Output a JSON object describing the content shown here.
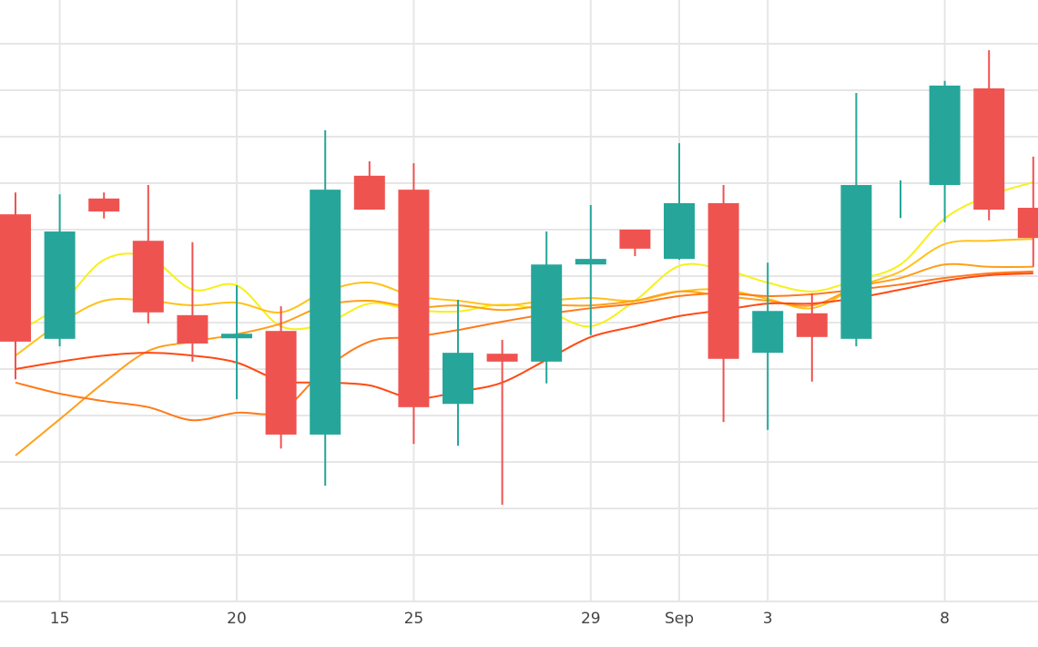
{
  "chart_data": {
    "type": "candlestick",
    "title": "",
    "xlabel": "",
    "ylabel": "",
    "ylim": [
      0,
      12
    ],
    "y_grid_step": 1,
    "grid": true,
    "x_tick_labels": [
      {
        "index": 1,
        "label": "15"
      },
      {
        "index": 5,
        "label": "20"
      },
      {
        "index": 9,
        "label": "25"
      },
      {
        "index": 13,
        "label": "29"
      },
      {
        "index": 15,
        "label": "Sep"
      },
      {
        "index": 17,
        "label": "3"
      },
      {
        "index": 21,
        "label": "8"
      }
    ],
    "colors": {
      "up": "#26a69a",
      "down": "#ef5350",
      "grid": "#e6e6e6"
    },
    "candles": [
      {
        "o": 8.33,
        "h": 8.8,
        "l": 4.78,
        "c": 5.59
      },
      {
        "o": 5.65,
        "h": 8.76,
        "l": 5.49,
        "c": 7.96
      },
      {
        "o": 8.67,
        "h": 8.8,
        "l": 8.24,
        "c": 8.39
      },
      {
        "o": 7.76,
        "h": 8.96,
        "l": 5.98,
        "c": 6.22
      },
      {
        "o": 6.16,
        "h": 7.73,
        "l": 5.16,
        "c": 5.55
      },
      {
        "o": 5.69,
        "h": 6.8,
        "l": 4.35,
        "c": 5.76
      },
      {
        "o": 5.82,
        "h": 6.35,
        "l": 3.29,
        "c": 3.59
      },
      {
        "o": 3.59,
        "h": 10.14,
        "l": 2.49,
        "c": 8.86
      },
      {
        "o": 9.16,
        "h": 9.47,
        "l": 8.43,
        "c": 8.43
      },
      {
        "o": 8.86,
        "h": 9.43,
        "l": 3.39,
        "c": 4.18
      },
      {
        "o": 4.25,
        "h": 6.49,
        "l": 3.35,
        "c": 5.35
      },
      {
        "o": 5.33,
        "h": 5.63,
        "l": 2.08,
        "c": 5.16
      },
      {
        "o": 5.16,
        "h": 7.96,
        "l": 4.69,
        "c": 7.25
      },
      {
        "o": 7.25,
        "h": 8.53,
        "l": 5.73,
        "c": 7.37
      },
      {
        "o": 8.0,
        "h": 8.0,
        "l": 7.43,
        "c": 7.59
      },
      {
        "o": 7.37,
        "h": 9.86,
        "l": 7.35,
        "c": 8.57
      },
      {
        "o": 8.57,
        "h": 8.96,
        "l": 3.86,
        "c": 5.22
      },
      {
        "o": 5.35,
        "h": 7.29,
        "l": 3.69,
        "c": 6.25
      },
      {
        "o": 6.2,
        "h": 6.63,
        "l": 4.73,
        "c": 5.69
      },
      {
        "o": 5.65,
        "h": 10.94,
        "l": 5.49,
        "c": 8.96
      },
      {
        "o": 8.86,
        "h": 9.06,
        "l": 8.25,
        "c": 8.86
      },
      {
        "o": 8.96,
        "h": 11.2,
        "l": 8.16,
        "c": 11.1
      },
      {
        "o": 11.04,
        "h": 11.86,
        "l": 8.2,
        "c": 8.43
      },
      {
        "o": 8.47,
        "h": 9.57,
        "l": 7.2,
        "c": 7.82
      }
    ],
    "series": [
      {
        "name": "ma-yellow",
        "color": "#f7f01a",
        "values": [
          5.78,
          6.37,
          7.35,
          7.41,
          6.71,
          6.8,
          5.92,
          5.98,
          6.41,
          6.27,
          6.24,
          6.39,
          6.24,
          5.92,
          6.47,
          7.22,
          7.14,
          6.86,
          6.67,
          6.92,
          7.25,
          8.24,
          8.73,
          9.02
        ]
      },
      {
        "name": "ma-gold",
        "color": "#ffc21a",
        "values": [
          5.29,
          5.98,
          6.47,
          6.47,
          6.37,
          6.43,
          6.22,
          6.67,
          6.86,
          6.57,
          6.47,
          6.37,
          6.47,
          6.53,
          6.47,
          6.67,
          6.71,
          6.51,
          6.31,
          6.76,
          7.1,
          7.69,
          7.76,
          7.8
        ]
      },
      {
        "name": "ma-orange",
        "color": "#ff9f1a",
        "values": [
          3.14,
          3.92,
          4.71,
          5.39,
          5.59,
          5.75,
          5.98,
          6.37,
          6.47,
          6.33,
          6.37,
          6.27,
          6.37,
          6.37,
          6.47,
          6.67,
          6.57,
          6.47,
          6.37,
          6.76,
          6.96,
          7.25,
          7.2,
          7.2
        ]
      },
      {
        "name": "ma-dark-orange",
        "color": "#ff7a1a",
        "values": [
          4.71,
          4.47,
          4.31,
          4.18,
          3.9,
          4.06,
          4.1,
          5.0,
          5.59,
          5.69,
          5.84,
          6.02,
          6.18,
          6.31,
          6.41,
          6.57,
          6.63,
          6.57,
          6.61,
          6.71,
          6.82,
          6.96,
          7.06,
          7.1
        ]
      },
      {
        "name": "ma-red",
        "color": "#ff4a14",
        "values": [
          5.0,
          5.16,
          5.29,
          5.35,
          5.29,
          5.14,
          4.75,
          4.71,
          4.65,
          4.37,
          4.51,
          4.71,
          5.2,
          5.69,
          5.92,
          6.14,
          6.27,
          6.41,
          6.41,
          6.53,
          6.71,
          6.9,
          7.02,
          7.06
        ]
      }
    ]
  }
}
